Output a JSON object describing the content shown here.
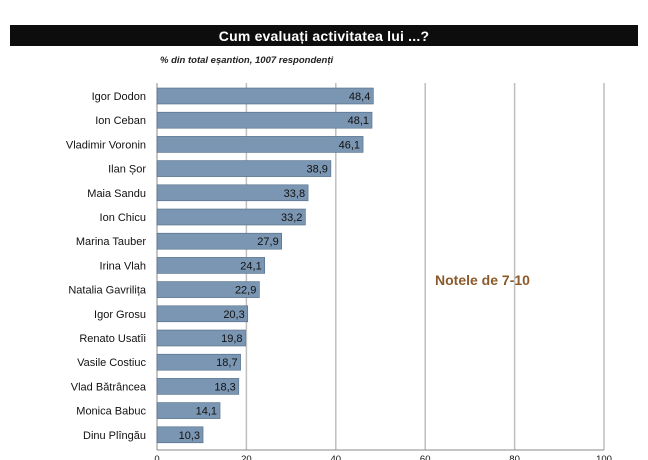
{
  "header": {
    "title": "Cum evaluați activitatea lui ...?",
    "subtitle": "% din total eșantion, 1007 respondenți"
  },
  "chart_data": {
    "type": "bar",
    "orientation": "horizontal",
    "categories": [
      "Igor Dodon",
      "Ion Ceban",
      "Vladimir Voronin",
      "Ilan Șor",
      "Maia Sandu",
      "Ion Chicu",
      "Marina Tauber",
      "Irina Vlah",
      "Natalia Gavrilița",
      "Igor Grosu",
      "Renato Usatîi",
      "Vasile Costiuc",
      "Vlad Bătrâncea",
      "Monica Babuc",
      "Dinu Plîngău"
    ],
    "values": [
      48.4,
      48.1,
      46.1,
      38.9,
      33.8,
      33.2,
      27.9,
      24.1,
      22.9,
      20.3,
      19.8,
      18.7,
      18.3,
      14.1,
      10.3
    ],
    "value_labels": [
      "48,4",
      "48,1",
      "46,1",
      "38,9",
      "33,8",
      "33,2",
      "27,9",
      "24,1",
      "22,9",
      "20,3",
      "19,8",
      "18,7",
      "18,3",
      "14,1",
      "10,3"
    ],
    "xlim": [
      0,
      100
    ],
    "xticks": [
      "0",
      "20",
      "40",
      "60",
      "80",
      "100"
    ],
    "grid": true,
    "bar_color": "#7b96b2",
    "bar_border": "#4f6a86",
    "grid_color": "#bfbfbf",
    "annotation": "Notele de 7-10"
  }
}
